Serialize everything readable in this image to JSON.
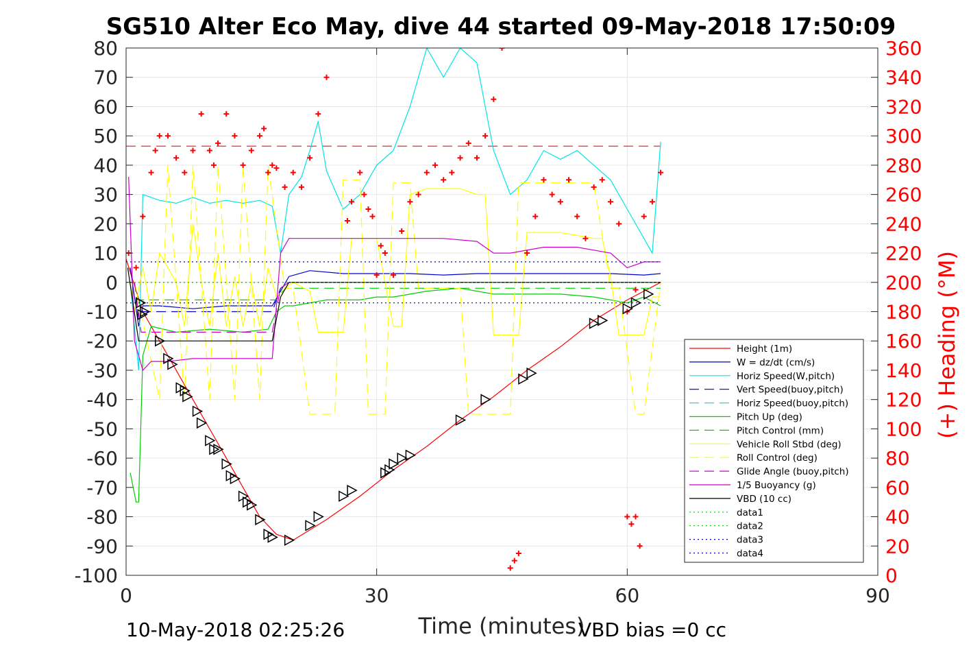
{
  "chart_data": {
    "type": "line",
    "title": "SG510 Alter Eco May, dive 44 started 09-May-2018 17:50:09",
    "xlabel": "Time (minutes)",
    "ylabel_right": "(+) Heading (°M)",
    "xlim": [
      0,
      90
    ],
    "ylim": [
      -100,
      80
    ],
    "ylim_right": [
      0,
      360
    ],
    "x_ticks": [
      "0",
      "30",
      "60",
      "90"
    ],
    "y_ticks": [
      "80",
      "70",
      "60",
      "50",
      "40",
      "30",
      "20",
      "10",
      "0",
      "-10",
      "-20",
      "-30",
      "-40",
      "-50",
      "-60",
      "-70",
      "-80",
      "-90",
      "-100"
    ],
    "y_ticks_right": [
      "360",
      "340",
      "320",
      "300",
      "280",
      "260",
      "240",
      "220",
      "200",
      "180",
      "160",
      "140",
      "120",
      "100",
      "80",
      "60",
      "40",
      "20",
      "0"
    ],
    "grid": true,
    "legend_position": "bottom-right",
    "footer_left": "10-May-2018 02:25:26",
    "footer_right": "VBD bias =0 cc",
    "legend": [
      {
        "name": "Height (1m)",
        "color": "#ff0000",
        "style": "solid"
      },
      {
        "name": "W = dz/dt (cm/s)",
        "color": "#0000cc",
        "style": "solid"
      },
      {
        "name": "Horiz Speed(W,pitch)",
        "color": "#00e5e5",
        "style": "solid"
      },
      {
        "name": "Vert Speed(buoy,pitch)",
        "color": "#0000cc",
        "style": "dashed"
      },
      {
        "name": "Horiz Speed(buoy,pitch)",
        "color": "#00e5e5",
        "style": "dashed"
      },
      {
        "name": "Pitch Up (deg)",
        "color": "#00cc00",
        "style": "solid"
      },
      {
        "name": "Pitch Control (mm)",
        "color": "#00cc00",
        "style": "dashed"
      },
      {
        "name": "Vehicle Roll Stbd (deg)",
        "color": "#ffff00",
        "style": "solid"
      },
      {
        "name": "Roll Control (deg)",
        "color": "#ffff00",
        "style": "dashed"
      },
      {
        "name": "Glide Angle (buoy,pitch)",
        "color": "#cc00cc",
        "style": "dashed"
      },
      {
        "name": "1/5 Buoyancy (g)",
        "color": "#cc00cc",
        "style": "solid"
      },
      {
        "name": "VBD (10 cc)",
        "color": "#000000",
        "style": "solid"
      },
      {
        "name": "data1",
        "color": "#00cc00",
        "style": "dotted"
      },
      {
        "name": "data2",
        "color": "#00cc00",
        "style": "dotted"
      },
      {
        "name": "data3",
        "color": "#0000cc",
        "style": "dotted"
      },
      {
        "name": "data4",
        "color": "#0000cc",
        "style": "dotted"
      }
    ],
    "series": [
      {
        "name": "Height (1m)",
        "color": "#ff0000",
        "style": "solid",
        "x": [
          0,
          2,
          4,
          6,
          8,
          10,
          12,
          14,
          16,
          18,
          20,
          24,
          28,
          32,
          36,
          40,
          44,
          48,
          52,
          56,
          60,
          64
        ],
        "y": [
          8,
          -10,
          -20,
          -30,
          -40,
          -50,
          -60,
          -70,
          -80,
          -86,
          -88,
          -81,
          -73,
          -64,
          -56,
          -47,
          -39,
          -30,
          -22,
          -13,
          -6,
          0
        ]
      },
      {
        "name": "W = dz/dt (cm/s)",
        "color": "#0000cc",
        "style": "solid",
        "x": [
          0.5,
          1.5,
          2,
          4,
          8,
          12,
          16,
          17.5,
          18.5,
          19.5,
          22,
          26,
          30,
          34,
          38,
          42,
          46,
          50,
          54,
          58,
          62,
          64
        ],
        "y": [
          5,
          -15,
          -8,
          -8,
          -9,
          -8,
          -8,
          -8,
          -3,
          2,
          4,
          3,
          3,
          3,
          2.5,
          3,
          3,
          3,
          3,
          3,
          2.5,
          3
        ]
      },
      {
        "name": "Horiz Speed(W,pitch)",
        "color": "#00e5e5",
        "style": "solid",
        "x": [
          0.5,
          1.5,
          2,
          4,
          6,
          8,
          10,
          12,
          14,
          16,
          17.5,
          18.5,
          19.5,
          21,
          22,
          23,
          24,
          26,
          28,
          30,
          32,
          34,
          36,
          38,
          40,
          42,
          44,
          46,
          48,
          50,
          52,
          54,
          56,
          58,
          60,
          62,
          63,
          64
        ],
        "y": [
          0,
          -30,
          30,
          28,
          27,
          29,
          27,
          28,
          27,
          28,
          26,
          10,
          30,
          36,
          45,
          55,
          38,
          25,
          30,
          40,
          45,
          60,
          80,
          70,
          80,
          75,
          45,
          30,
          35,
          45,
          42,
          45,
          40,
          35,
          25,
          15,
          10,
          48
        ]
      },
      {
        "name": "Vert Speed(buoy,pitch)",
        "color": "#0000cc",
        "style": "dashed",
        "x": [
          1,
          1.8,
          4,
          17.5,
          18.5,
          19.5,
          64
        ],
        "y": [
          0,
          -10,
          -10,
          -10,
          -2,
          0,
          0
        ]
      },
      {
        "name": "Pitch Up (deg)",
        "color": "#00cc00",
        "style": "solid",
        "x": [
          0.5,
          1.2,
          1.5,
          2,
          3,
          6,
          10,
          14,
          17,
          18,
          19,
          20,
          24,
          28,
          30,
          32,
          36,
          40,
          44,
          48,
          52,
          56,
          60,
          62,
          64
        ],
        "y": [
          -65,
          -75,
          -75,
          -25,
          -15,
          -17,
          -16,
          -17,
          -16,
          -10,
          -8,
          -8,
          -6,
          -6,
          -5,
          -5,
          -3,
          -2,
          -4,
          -4,
          -4,
          -5,
          -7,
          -5,
          -8
        ]
      },
      {
        "name": "Pitch Control (mm)",
        "color": "#00cc00",
        "style": "dashed",
        "x": [
          1,
          18,
          19,
          64
        ],
        "y": [
          -6,
          -6,
          -2,
          -2
        ]
      },
      {
        "name": "Vehicle Roll Stbd (deg)",
        "color": "#ffff00",
        "style": "solid",
        "x": [
          0.5,
          1,
          2,
          3,
          4,
          5,
          6,
          7,
          8,
          9,
          10,
          11,
          12,
          13,
          14,
          15,
          16,
          17,
          18,
          19,
          20,
          22,
          23,
          24,
          26,
          27,
          28,
          30,
          32,
          33,
          34,
          36,
          38,
          39,
          40,
          42,
          43,
          44,
          46,
          47,
          48,
          50,
          52,
          54,
          56,
          57,
          58,
          59,
          60,
          62,
          63,
          64
        ],
        "y": [
          0,
          -10,
          5,
          -10,
          10,
          5,
          0,
          -15,
          20,
          0,
          -15,
          10,
          -15,
          2,
          -15,
          0,
          -15,
          5,
          -5,
          -2,
          0,
          -3,
          -17,
          -17,
          -17,
          15,
          15,
          15,
          -15,
          -15,
          30,
          32,
          32,
          32,
          32,
          30,
          30,
          -18,
          -18,
          -18,
          17,
          17,
          17,
          16,
          15,
          15,
          2,
          -18,
          -18,
          -18,
          -5,
          -5
        ]
      },
      {
        "name": "Roll Control (deg)",
        "color": "#ffff00",
        "style": "dashed",
        "x": [
          1,
          4,
          5,
          7,
          8,
          10,
          11,
          13,
          14,
          16,
          17,
          19,
          20,
          22,
          23,
          25,
          26,
          28,
          29,
          31,
          32,
          34,
          35,
          37,
          38,
          40,
          41,
          43,
          44,
          46,
          47,
          49,
          50,
          52,
          53,
          55,
          56,
          58,
          59,
          61,
          62,
          64
        ],
        "y": [
          0,
          -40,
          40,
          -40,
          40,
          -40,
          40,
          -40,
          40,
          -40,
          40,
          -2,
          -2,
          -45,
          -45,
          -45,
          35,
          35,
          -45,
          -45,
          34,
          34,
          -2,
          -2,
          -2,
          -2,
          -45,
          -45,
          -45,
          -45,
          34,
          34,
          34,
          34,
          34,
          34,
          34,
          -2,
          -2,
          -45,
          -45,
          0
        ]
      },
      {
        "name": "Glide Angle (buoy,pitch)",
        "color": "#cc00cc",
        "style": "dashed",
        "x": [
          1,
          1.8,
          4,
          17.5,
          18.5,
          19.5,
          64
        ],
        "y": [
          0,
          -17,
          -17,
          -17,
          -2,
          0,
          0
        ]
      },
      {
        "name": "1/5 Buoyancy (g)",
        "color": "#cc00cc",
        "style": "solid",
        "x": [
          0.3,
          1,
          2,
          3,
          5,
          8,
          12,
          16,
          17.5,
          18.5,
          19.5,
          22,
          26,
          30,
          34,
          38,
          42,
          44,
          46,
          50,
          54,
          56,
          58,
          60,
          62,
          64
        ],
        "y": [
          36,
          -20,
          -30,
          -27,
          -27,
          -26,
          -26,
          -26,
          -26,
          10,
          15,
          15,
          15,
          15,
          15,
          15,
          14,
          10,
          10,
          12,
          12,
          11,
          10,
          5,
          7,
          7
        ]
      },
      {
        "name": "VBD (10 cc)",
        "color": "#000000",
        "style": "solid",
        "x": [
          0.2,
          1.5,
          2,
          17.5,
          18.5,
          19.5,
          64
        ],
        "y": [
          5,
          -20,
          -20,
          -20,
          -5,
          0,
          0
        ]
      },
      {
        "name": "data1",
        "color": "#00cc00",
        "style": "dotted",
        "x": [
          0,
          64
        ],
        "y": [
          0,
          0
        ]
      },
      {
        "name": "data2",
        "color": "#00cc00",
        "style": "dotted",
        "x": [
          0,
          64
        ],
        "y": [
          0,
          0
        ]
      },
      {
        "name": "data3",
        "color": "#0000cc",
        "style": "dotted",
        "x": [
          0,
          64
        ],
        "y": [
          7,
          7
        ]
      },
      {
        "name": "data4",
        "color": "#0000cc",
        "style": "dotted",
        "x": [
          0,
          64
        ],
        "y": [
          -7,
          -7
        ]
      }
    ],
    "reference_lines": [
      {
        "axis": "right",
        "value": 293,
        "color": "#cc0000",
        "style": "dashed",
        "x_range": [
          0,
          64
        ]
      }
    ],
    "heading_points": {
      "axis": "right",
      "color": "#ff0000",
      "marker": "+",
      "x": [
        0.3,
        1.2,
        2,
        3,
        3.5,
        4,
        5,
        6,
        7,
        8,
        9,
        10,
        10.5,
        11,
        12,
        13,
        14,
        15,
        16,
        16.5,
        17,
        17.5,
        18,
        19,
        20,
        21,
        22,
        23,
        24,
        25,
        26.5,
        27,
        28,
        28.5,
        29,
        29.5,
        30,
        30.5,
        31,
        32,
        33,
        34,
        35,
        36,
        37,
        38,
        39,
        40,
        41,
        42,
        43,
        44,
        45,
        46,
        46.5,
        47,
        48,
        49,
        50,
        51,
        52,
        53,
        54,
        55,
        56,
        57,
        58,
        59,
        60,
        61,
        62,
        63,
        64,
        60,
        60.5,
        61,
        61.5
      ],
      "y": [
        220,
        210,
        245,
        275,
        290,
        300,
        300,
        285,
        275,
        290,
        315,
        290,
        280,
        295,
        315,
        300,
        280,
        290,
        300,
        305,
        275,
        280,
        278,
        265,
        275,
        265,
        285,
        315,
        340,
        365,
        242,
        255,
        275,
        260,
        250,
        245,
        205,
        225,
        220,
        205,
        235,
        255,
        260,
        275,
        280,
        270,
        275,
        285,
        295,
        285,
        300,
        325,
        360,
        5,
        10,
        15,
        220,
        245,
        270,
        260,
        255,
        270,
        245,
        230,
        265,
        270,
        255,
        240,
        180,
        195,
        245,
        255,
        275,
        40,
        35,
        40,
        20
      ]
    },
    "depth_markers": {
      "marker": "triangle-right",
      "color": "#000000",
      "x": [
        1.7,
        1.9,
        2.2,
        4,
        5,
        5.5,
        6.5,
        7,
        7.3,
        8.5,
        9,
        10,
        10.5,
        11,
        12,
        12.5,
        13,
        14,
        14.5,
        15,
        16,
        17,
        17.5,
        19.5,
        22,
        23,
        26,
        27,
        31,
        31.5,
        32,
        33,
        34,
        40,
        43,
        47.5,
        48.5,
        56,
        57,
        60,
        61,
        62.5
      ],
      "y": [
        -7,
        -11,
        -10,
        -20,
        -26,
        -28,
        -36,
        -37,
        -39,
        -44,
        -48,
        -54,
        -57,
        -57,
        -62,
        -66,
        -67,
        -73,
        -75,
        -76,
        -81,
        -86,
        -87,
        -88,
        -83,
        -80,
        -73,
        -71,
        -65,
        -64,
        -62,
        -60,
        -59,
        -47,
        -40,
        -33,
        -31,
        -14,
        -13,
        -9,
        -7,
        -4
      ]
    }
  }
}
